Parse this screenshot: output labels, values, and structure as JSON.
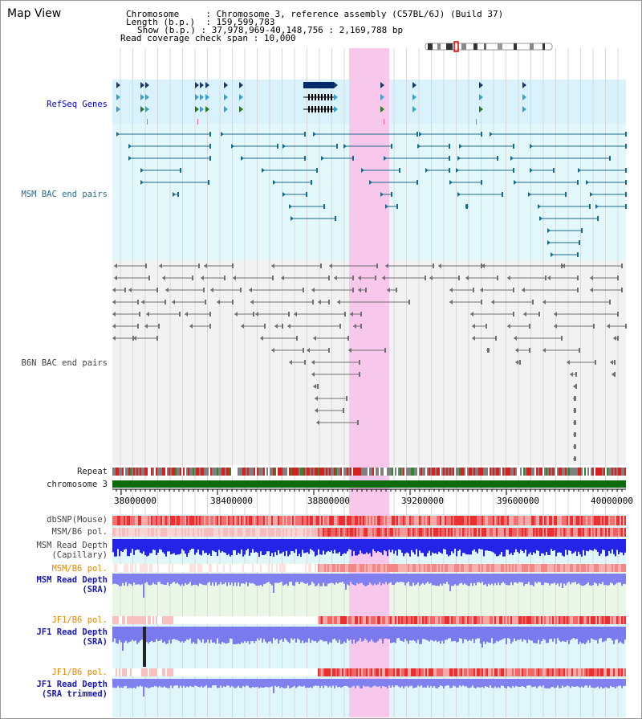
{
  "title": "Map View",
  "header": {
    "chromosome_label": "Chromosome",
    "chromosome_value": "Chromosome 3, reference assembly (C57BL/6J) (Build 37)",
    "length_label": "Length (b.p.)",
    "length_value": "159,599,783",
    "show_label": "Show (b.p.)",
    "show_value": "37,978,969-40,148,756 : 2,169,788 bp",
    "coverage_label": "Read coverage check span",
    "coverage_value": "10,000"
  },
  "tracks": {
    "refseq": "RefSeq Genes",
    "msm_bac": "MSM BAC end pairs",
    "b6n_bac": "B6N BAC end pairs",
    "repeat": "Repeat",
    "chromosome": "chromosome 3",
    "dbsnp": "dbSNP(Mouse)",
    "msm_b6_pol": "MSM/B6 pol.",
    "msm_read_depth_cap_1": "MSM Read Depth",
    "msm_read_depth_cap_2": "(Capillary)",
    "msm_b6_pol_2": "MSM/B6 pol.",
    "msm_read_depth_sra_1": "MSM Read Depth",
    "msm_read_depth_sra_2": "(SRA)",
    "jf1_b6_pol": "JF1/B6 pol.",
    "jf1_read_depth_sra_1": "JF1 Read Depth",
    "jf1_read_depth_sra_2": "(SRA)",
    "jf1_b6_pol_2": "JF1/B6 pol.",
    "jf1_read_depth_trim_1": "JF1 Read Depth",
    "jf1_read_depth_trim_2": "(SRA trimmed)"
  },
  "ruler": {
    "ticks": [
      "38000000",
      "38400000",
      "38800000",
      "39200000",
      "39600000",
      "40000000"
    ]
  },
  "colors": {
    "highlight": "#f7c8ec",
    "refseq_bg": "#d9f2fb",
    "msm_bg": "#e3f8fb",
    "b6n_bg": "#f2f2f2",
    "chromosome_bar": "#0d6b0d",
    "msm_feature": "#1a6a8a",
    "b6n_feature": "#707070",
    "gene_dark": "#002a6a",
    "depth_blue": "#2222ee",
    "depth_light": "#8080ee"
  },
  "icons": [
    "ideogram-icon"
  ]
}
